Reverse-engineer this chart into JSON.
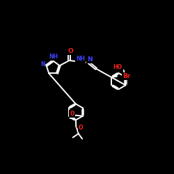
{
  "bg": "#000000",
  "bond": "#ffffff",
  "N_color": "#4040ff",
  "O_color": "#ff2020",
  "Br_color": "#ff2020",
  "lw": 1.4,
  "lw_inner": 1.1,
  "fs": 6.5,
  "fs_sm": 5.5,
  "xlim": [
    0,
    10
  ],
  "ylim": [
    0,
    10
  ]
}
